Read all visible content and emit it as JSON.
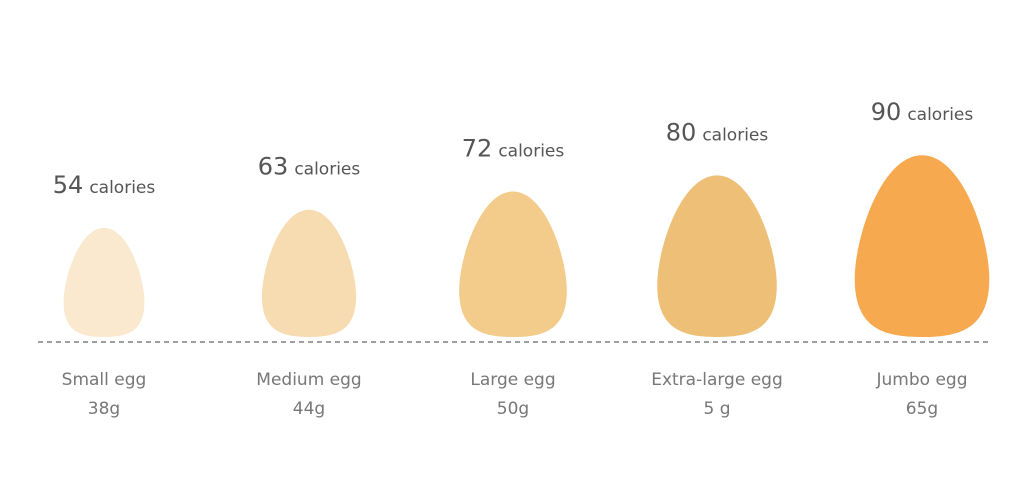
{
  "chart_data": {
    "type": "egg",
    "categories": [
      "Small egg",
      "Medium egg",
      "Large egg",
      "Extra-large egg",
      "Jumbo egg"
    ],
    "values": [
      54,
      63,
      72,
      80,
      90
    ],
    "unit": "calories",
    "weights": [
      "38g",
      "44g",
      "50g",
      "5 g",
      "65g"
    ],
    "colors": [
      "#fae8cf",
      "#f7dbb1",
      "#f3cc8c",
      "#eec077",
      "#f6a94e"
    ]
  }
}
